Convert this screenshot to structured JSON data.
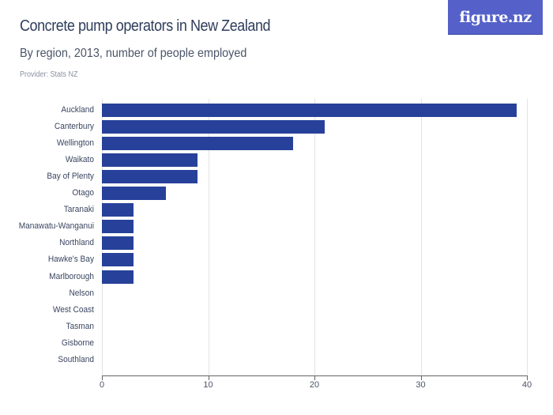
{
  "header": {
    "title": "Concrete pump operators in New Zealand",
    "subtitle": "By region, 2013, number of people employed",
    "provider": "Provider: Stats NZ",
    "logo_text": "figure.nz"
  },
  "colors": {
    "bar": "#27419a",
    "logo_bg": "#5561c9",
    "title": "#2f3e5c"
  },
  "chart_data": {
    "type": "bar",
    "orientation": "horizontal",
    "title": "Concrete pump operators in New Zealand",
    "subtitle": "By region, 2013, number of people employed",
    "xlabel": "",
    "ylabel": "",
    "xlim": [
      0,
      40
    ],
    "ticks": [
      "0",
      "10",
      "20",
      "30",
      "40"
    ],
    "grid": true,
    "legend": null,
    "categories": [
      "Auckland",
      "Canterbury",
      "Wellington",
      "Waikato",
      "Bay of Plenty",
      "Otago",
      "Taranaki",
      "Manawatu-Wanganui",
      "Northland",
      "Hawke's Bay",
      "Marlborough",
      "Nelson",
      "West Coast",
      "Tasman",
      "Gisborne",
      "Southland"
    ],
    "values": [
      39,
      21,
      18,
      9,
      9,
      6,
      3,
      3,
      3,
      3,
      3,
      0,
      0,
      0,
      0,
      0
    ]
  }
}
